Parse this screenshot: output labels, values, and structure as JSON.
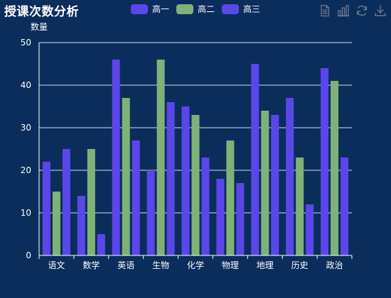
{
  "title": "授课次数分析",
  "legend": [
    "高一",
    "高二",
    "高三"
  ],
  "colors": {
    "background": "#0b2d5c",
    "series": [
      "#5a47ea",
      "#7fb277",
      "#5a47ea"
    ],
    "axis": "#ffffff",
    "grid": "#ffffff",
    "toolbox_icon": "#6f7b8c"
  },
  "toolbox": {
    "icons": [
      "data-view-icon",
      "bar-chart-icon",
      "restore-icon",
      "save-image-icon"
    ]
  },
  "chart_data": {
    "type": "bar",
    "ylabel": "数量",
    "xlabel": "",
    "ylim": [
      0,
      50
    ],
    "yticks": [
      0,
      10,
      20,
      30,
      40,
      50
    ],
    "grid": true,
    "legend_position": "top-center",
    "categories": [
      "语文",
      "数学",
      "英语",
      "生物",
      "化学",
      "物理",
      "地理",
      "历史",
      "政治"
    ],
    "series": [
      {
        "name": "高一",
        "values": [
          22,
          14,
          46,
          20,
          35,
          18,
          45,
          37,
          44
        ]
      },
      {
        "name": "高二",
        "values": [
          15,
          25,
          37,
          46,
          33,
          27,
          34,
          23,
          41
        ]
      },
      {
        "name": "高三",
        "values": [
          25,
          5,
          27,
          36,
          23,
          17,
          33,
          12,
          23
        ]
      }
    ]
  }
}
